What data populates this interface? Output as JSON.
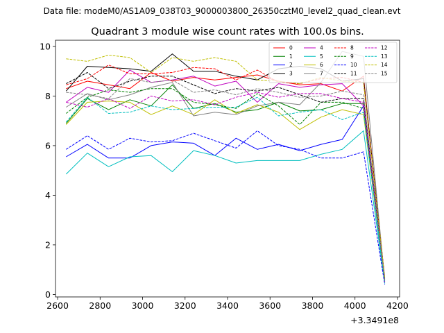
{
  "suptitle": "Data file: modeM0/AS1A09_038T03_9000003800_26350cztM0_level2_quad_clean.evt",
  "chart_data": {
    "type": "line",
    "title": "Quadrant 3 module wise count rates with 100.0s bins.",
    "xlabel": "",
    "ylabel": "",
    "x_offset_label": "+3.3491e8",
    "xlim": [
      2590,
      4210
    ],
    "ylim": [
      -0.1,
      10.25
    ],
    "x_ticks": [
      2600,
      2800,
      3000,
      3200,
      3400,
      3600,
      3800,
      4000,
      4200
    ],
    "x_tick_labels": [
      "2600",
      "2800",
      "3000",
      "3200",
      "3400",
      "3600",
      "3800",
      "4000",
      "4200"
    ],
    "y_ticks": [
      0,
      2,
      4,
      6,
      8,
      10
    ],
    "y_tick_labels": [
      "0",
      "2",
      "4",
      "6",
      "8",
      "10"
    ],
    "grid": false,
    "legend_position": "top-right",
    "legend_columns": 4,
    "x": [
      2640,
      2740,
      2840,
      2940,
      3040,
      3140,
      3240,
      3340,
      3440,
      3540,
      3640,
      3740,
      3840,
      3940,
      4040,
      4140
    ],
    "series": [
      {
        "name": "0",
        "color": "#ff0000",
        "dash": "solid",
        "values": [
          8.3,
          8.6,
          8.45,
          8.3,
          8.95,
          8.6,
          8.75,
          8.65,
          8.75,
          8.85,
          8.6,
          8.45,
          8.5,
          8.2,
          8.8,
          0.6
        ]
      },
      {
        "name": "1",
        "color": "#008000",
        "dash": "solid",
        "values": [
          6.9,
          7.9,
          7.45,
          7.85,
          7.6,
          8.45,
          7.5,
          7.7,
          7.35,
          7.45,
          7.75,
          7.4,
          7.45,
          7.7,
          7.7,
          0.5
        ]
      },
      {
        "name": "2",
        "color": "#0000ff",
        "dash": "solid",
        "values": [
          5.55,
          6.05,
          5.5,
          5.5,
          6.0,
          6.15,
          6.1,
          5.6,
          6.3,
          5.85,
          6.05,
          5.8,
          6.05,
          6.25,
          7.6,
          0.5
        ]
      },
      {
        "name": "3",
        "color": "#000000",
        "dash": "solid",
        "values": [
          8.2,
          9.2,
          9.15,
          9.1,
          9.0,
          9.7,
          9.0,
          9.0,
          8.8,
          8.65,
          9.1,
          9.2,
          9.1,
          8.6,
          8.7,
          0.65
        ]
      },
      {
        "name": "4",
        "color": "#bf00bf",
        "dash": "solid",
        "values": [
          7.75,
          8.35,
          8.15,
          9.05,
          8.55,
          8.65,
          8.8,
          8.4,
          8.6,
          7.75,
          8.5,
          8.35,
          8.45,
          8.5,
          7.6,
          0.5
        ]
      },
      {
        "name": "5",
        "color": "#00bfbf",
        "dash": "solid",
        "values": [
          4.85,
          5.7,
          5.15,
          5.55,
          5.6,
          4.95,
          5.8,
          5.6,
          5.3,
          5.4,
          5.4,
          5.4,
          5.65,
          5.85,
          6.6,
          0.45
        ]
      },
      {
        "name": "6",
        "color": "#bfbf00",
        "dash": "solid",
        "values": [
          6.85,
          7.75,
          7.8,
          7.75,
          7.25,
          7.6,
          7.25,
          7.85,
          7.3,
          7.65,
          7.35,
          6.65,
          7.15,
          7.45,
          7.25,
          0.5
        ]
      },
      {
        "name": "7",
        "color": "#808080",
        "dash": "solid",
        "values": [
          7.55,
          8.1,
          7.85,
          8.05,
          8.35,
          8.55,
          7.2,
          7.35,
          7.25,
          7.6,
          7.75,
          7.65,
          8.55,
          9.8,
          9.6,
          0.55
        ]
      },
      {
        "name": "8",
        "color": "#ff0000",
        "dash": "dashed",
        "values": [
          8.45,
          8.7,
          9.25,
          8.9,
          8.9,
          8.95,
          9.15,
          9.1,
          8.65,
          9.05,
          8.55,
          8.5,
          8.7,
          8.75,
          8.55,
          0.65
        ]
      },
      {
        "name": "9",
        "color": "#008000",
        "dash": "dashed",
        "values": [
          7.3,
          7.95,
          8.25,
          8.15,
          8.3,
          8.3,
          7.75,
          7.65,
          7.5,
          8.1,
          7.6,
          6.85,
          7.75,
          7.75,
          7.5,
          0.5
        ]
      },
      {
        "name": "10",
        "color": "#0000ff",
        "dash": "dashed",
        "values": [
          5.85,
          6.4,
          5.85,
          6.3,
          6.15,
          6.2,
          6.5,
          6.2,
          5.9,
          6.6,
          6.0,
          5.85,
          5.5,
          5.5,
          5.75,
          0.4
        ]
      },
      {
        "name": "11",
        "color": "#000000",
        "dash": "dashed",
        "values": [
          8.5,
          8.95,
          8.3,
          8.6,
          8.8,
          8.8,
          8.45,
          8.1,
          8.3,
          8.2,
          8.35,
          8.05,
          7.75,
          7.9,
          7.9,
          0.6
        ]
      },
      {
        "name": "12",
        "color": "#bf00bf",
        "dash": "dashed",
        "values": [
          7.75,
          7.55,
          7.9,
          7.5,
          8.0,
          7.8,
          7.85,
          7.65,
          7.95,
          8.15,
          7.95,
          8.1,
          8.1,
          7.9,
          7.75,
          0.5
        ]
      },
      {
        "name": "13",
        "color": "#00bfbf",
        "dash": "dashed",
        "values": [
          6.95,
          7.95,
          7.3,
          7.35,
          7.6,
          7.45,
          7.5,
          7.55,
          7.55,
          7.95,
          7.2,
          7.35,
          7.45,
          7.05,
          7.35,
          0.45
        ]
      },
      {
        "name": "14",
        "color": "#bfbf00",
        "dash": "dashed",
        "values": [
          9.5,
          9.4,
          9.65,
          9.55,
          8.95,
          9.55,
          9.4,
          9.55,
          9.4,
          8.65,
          8.6,
          8.5,
          8.75,
          8.6,
          8.55,
          0.65
        ]
      },
      {
        "name": "15",
        "color": "#808080",
        "dash": "dashed",
        "values": [
          8.15,
          8.05,
          7.9,
          8.7,
          8.55,
          8.65,
          8.15,
          8.25,
          8.05,
          8.3,
          8.15,
          7.95,
          8.0,
          8.2,
          8.05,
          0.55
        ]
      }
    ]
  }
}
